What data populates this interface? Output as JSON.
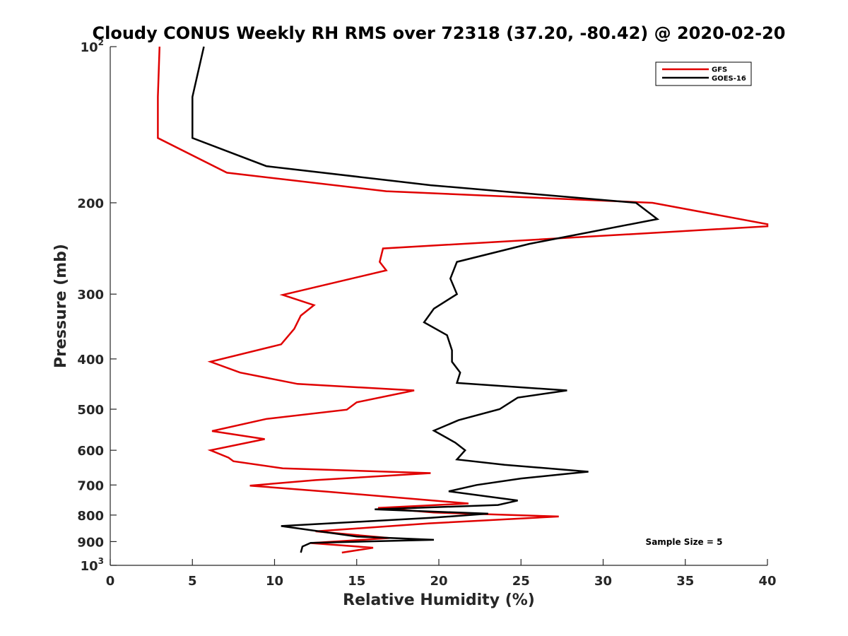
{
  "chart_data": {
    "type": "line",
    "title": "Cloudy CONUS Weekly RH RMS over 72318 (37.20, -80.42) @ 2020-02-20",
    "xlabel": "Relative Humidity (%)",
    "ylabel": "Pressure (mb)",
    "xlim": [
      0,
      40
    ],
    "ylim": [
      100,
      1000
    ],
    "yscale": "log",
    "y_reversed": true,
    "x_ticks": [
      0,
      5,
      10,
      15,
      20,
      25,
      30,
      35,
      40
    ],
    "x_tick_labels": [
      "0",
      "5",
      "10",
      "15",
      "20",
      "25",
      "30",
      "35",
      "40"
    ],
    "y_ticks": [
      {
        "value": 100,
        "base": "10",
        "exp": "2"
      },
      {
        "value": 200,
        "label": "200"
      },
      {
        "value": 300,
        "label": "300"
      },
      {
        "value": 400,
        "label": "400"
      },
      {
        "value": 500,
        "label": "500"
      },
      {
        "value": 600,
        "label": "600"
      },
      {
        "value": 700,
        "label": "700"
      },
      {
        "value": 800,
        "label": "800"
      },
      {
        "value": 900,
        "label": "900"
      },
      {
        "value": 1000,
        "base": "10",
        "exp": "3"
      }
    ],
    "legend_position": "top-right",
    "annotation": "Sample Size = 5",
    "series": [
      {
        "name": "GFS",
        "color": "#e00000",
        "points": [
          [
            3.0,
            100
          ],
          [
            2.9,
            125
          ],
          [
            2.9,
            150
          ],
          [
            7.1,
            175
          ],
          [
            16.8,
            190
          ],
          [
            33.0,
            200
          ],
          [
            40.0,
            220
          ],
          [
            40.0,
            222
          ],
          [
            16.6,
            245
          ],
          [
            16.4,
            260
          ],
          [
            16.8,
            270
          ],
          [
            10.5,
            301
          ],
          [
            12.4,
            315
          ],
          [
            11.6,
            330
          ],
          [
            11.2,
            350
          ],
          [
            10.4,
            375
          ],
          [
            6.1,
            405
          ],
          [
            7.9,
            425
          ],
          [
            11.4,
            447
          ],
          [
            18.5,
            460
          ],
          [
            15.0,
            485
          ],
          [
            14.4,
            501
          ],
          [
            9.5,
            522
          ],
          [
            6.2,
            551
          ],
          [
            9.4,
            571
          ],
          [
            6.1,
            600
          ],
          [
            7.2,
            620
          ],
          [
            7.5,
            630
          ],
          [
            10.5,
            650
          ],
          [
            19.5,
            664
          ],
          [
            12.5,
            685
          ],
          [
            8.5,
            702
          ],
          [
            13.2,
            721
          ],
          [
            21.8,
            760
          ],
          [
            16.3,
            775
          ],
          [
            19.7,
            791
          ],
          [
            27.3,
            805
          ],
          [
            19.4,
            830
          ],
          [
            12.5,
            860
          ],
          [
            17.0,
            886
          ],
          [
            12.2,
            906
          ],
          [
            16.0,
            925
          ],
          [
            14.1,
            945
          ]
        ]
      },
      {
        "name": "GOES-16",
        "color": "#000000",
        "points": [
          [
            5.7,
            100
          ],
          [
            5.0,
            125
          ],
          [
            5.0,
            150
          ],
          [
            9.5,
            170
          ],
          [
            19.5,
            185
          ],
          [
            32.0,
            200
          ],
          [
            33.3,
            215
          ],
          [
            25.5,
            240
          ],
          [
            21.1,
            260
          ],
          [
            20.7,
            280
          ],
          [
            21.1,
            300
          ],
          [
            19.7,
            320
          ],
          [
            19.1,
            340
          ],
          [
            20.5,
            360
          ],
          [
            20.8,
            385
          ],
          [
            20.8,
            405
          ],
          [
            21.3,
            425
          ],
          [
            21.1,
            445
          ],
          [
            27.8,
            460
          ],
          [
            24.8,
            475
          ],
          [
            23.7,
            500
          ],
          [
            21.2,
            525
          ],
          [
            19.7,
            550
          ],
          [
            21.0,
            580
          ],
          [
            21.6,
            600
          ],
          [
            21.1,
            625
          ],
          [
            24.0,
            640
          ],
          [
            29.1,
            660
          ],
          [
            28.0,
            665
          ],
          [
            25.0,
            680
          ],
          [
            22.3,
            700
          ],
          [
            20.6,
            720
          ],
          [
            24.8,
            750
          ],
          [
            23.6,
            765
          ],
          [
            16.1,
            780
          ],
          [
            23.0,
            795
          ],
          [
            19.5,
            810
          ],
          [
            10.4,
            840
          ],
          [
            15.0,
            880
          ],
          [
            19.7,
            893
          ],
          [
            12.2,
            905
          ],
          [
            11.7,
            920
          ],
          [
            11.6,
            945
          ]
        ]
      }
    ]
  }
}
